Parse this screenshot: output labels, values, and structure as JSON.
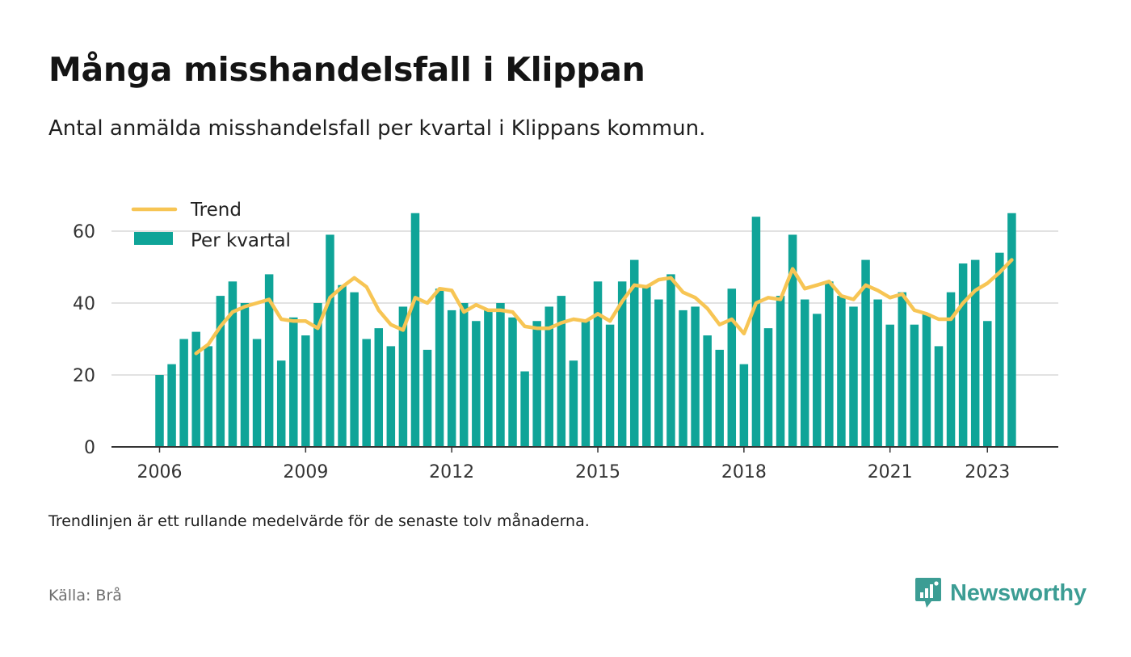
{
  "title": "Många misshandelsfall i Klippan",
  "subtitle": "Antal anmälda misshandelsfall per kvartal i Klippans kommun.",
  "note": "Trendlinjen är ett rullande medelvärde för de senaste tolv månaderna.",
  "source": "Källa: Brå",
  "brand": {
    "name": "Newsworthy",
    "icon": "newsworthy-logo-icon"
  },
  "colors": {
    "bar": "#0fa498",
    "trend": "#f7c554",
    "grid": "#d9d9d9",
    "axis": "#333333",
    "text": "#333333"
  },
  "chart_data": {
    "type": "bar",
    "x": [
      "2006 Q1",
      "2006 Q2",
      "2006 Q3",
      "2006 Q4",
      "2007 Q1",
      "2007 Q2",
      "2007 Q3",
      "2007 Q4",
      "2008 Q1",
      "2008 Q2",
      "2008 Q3",
      "2008 Q4",
      "2009 Q1",
      "2009 Q2",
      "2009 Q3",
      "2009 Q4",
      "2010 Q1",
      "2010 Q2",
      "2010 Q3",
      "2010 Q4",
      "2011 Q1",
      "2011 Q2",
      "2011 Q3",
      "2011 Q4",
      "2012 Q1",
      "2012 Q2",
      "2012 Q3",
      "2012 Q4",
      "2013 Q1",
      "2013 Q2",
      "2013 Q3",
      "2013 Q4",
      "2014 Q1",
      "2014 Q2",
      "2014 Q3",
      "2014 Q4",
      "2015 Q1",
      "2015 Q2",
      "2015 Q3",
      "2015 Q4",
      "2016 Q1",
      "2016 Q2",
      "2016 Q3",
      "2016 Q4",
      "2017 Q1",
      "2017 Q2",
      "2017 Q3",
      "2017 Q4",
      "2018 Q1",
      "2018 Q2",
      "2018 Q3",
      "2018 Q4",
      "2019 Q1",
      "2019 Q2",
      "2019 Q3",
      "2019 Q4",
      "2020 Q1",
      "2020 Q2",
      "2020 Q3",
      "2020 Q4",
      "2021 Q1",
      "2021 Q2",
      "2021 Q3",
      "2021 Q4",
      "2022 Q1",
      "2022 Q2",
      "2022 Q3",
      "2022 Q4",
      "2023 Q1",
      "2023 Q2",
      "2023 Q3"
    ],
    "series": [
      {
        "name": "Per kvartal",
        "type": "bar",
        "values": [
          20,
          23,
          30,
          32,
          28,
          42,
          46,
          40,
          30,
          48,
          24,
          36,
          31,
          40,
          59,
          45,
          43,
          30,
          33,
          28,
          39,
          65,
          27,
          44,
          38,
          40,
          35,
          38,
          40,
          36,
          21,
          35,
          39,
          42,
          24,
          35,
          46,
          34,
          46,
          52,
          45,
          41,
          48,
          38,
          39,
          31,
          27,
          44,
          23,
          64,
          33,
          42,
          59,
          41,
          37,
          46,
          42,
          39,
          52,
          41,
          34,
          43,
          34,
          37,
          28,
          43,
          51,
          52,
          35,
          54,
          65
        ]
      },
      {
        "name": "Trend",
        "type": "line",
        "values": [
          null,
          null,
          null,
          26,
          28.5,
          33.5,
          37.5,
          39,
          40,
          41,
          35.5,
          35,
          35,
          33,
          41.5,
          44.5,
          47,
          44.5,
          38,
          34,
          32.5,
          41.5,
          40,
          44,
          43.5,
          37.5,
          39.5,
          38,
          38,
          37.5,
          33.5,
          33,
          33,
          34.5,
          35.5,
          35,
          37,
          35,
          40.5,
          45,
          44.5,
          46.5,
          47,
          43,
          41.5,
          38.5,
          34,
          35.5,
          31.5,
          40,
          41.5,
          41,
          49.5,
          44,
          45,
          46,
          42,
          41,
          45,
          43.5,
          41.5,
          42.5,
          38,
          37,
          35.5,
          35.5,
          40,
          43.5,
          45.5,
          48.5,
          52
        ]
      }
    ],
    "x_ticks": [
      {
        "label": "2006",
        "index": 0
      },
      {
        "label": "2009",
        "index": 12
      },
      {
        "label": "2012",
        "index": 24
      },
      {
        "label": "2015",
        "index": 36
      },
      {
        "label": "2018",
        "index": 48
      },
      {
        "label": "2021",
        "index": 60
      },
      {
        "label": "2023",
        "index": 68
      }
    ],
    "y_ticks": [
      0,
      20,
      40,
      60
    ],
    "ylim": [
      0,
      65
    ],
    "grid": true,
    "legend_position": "top-left",
    "legend": [
      {
        "label": "Trend",
        "kind": "line"
      },
      {
        "label": "Per kvartal",
        "kind": "bar"
      }
    ]
  }
}
